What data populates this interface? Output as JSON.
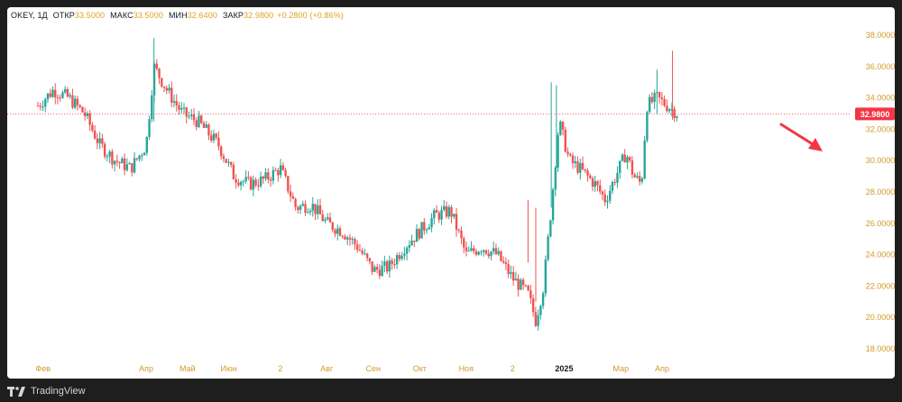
{
  "legend": {
    "symbol": "OKEY, 1Д",
    "open_label": "ОТКР",
    "open": "33.5000",
    "high_label": "МАКС",
    "high": "33.5000",
    "low_label": "МИН",
    "low": "32.6400",
    "close_label": "ЗАКР",
    "close": "32.9800",
    "change": "+0.2800 (+0.86%)"
  },
  "footer": {
    "brand": "TradingView"
  },
  "price_tag": "32.9800",
  "colors": {
    "up": "#26a69a",
    "down": "#ef5350",
    "axis_text": "#d39a2b",
    "price_line": "#f23645",
    "arrow": "#f23645"
  },
  "chart_data": {
    "type": "candlestick",
    "ylim": [
      17,
      39
    ],
    "yticks": [
      "18.0000",
      "20.0000",
      "22.0000",
      "24.0000",
      "26.0000",
      "28.0000",
      "30.0000",
      "32.0000",
      "34.0000",
      "36.0000",
      "38.0000"
    ],
    "ytick_values": [
      18,
      20,
      22,
      24,
      26,
      28,
      30,
      32,
      34,
      36,
      38
    ],
    "xticks": [
      "Фев",
      "Апр",
      "Май",
      "Июн",
      "2",
      "Авг",
      "Сен",
      "Окт",
      "Ноя",
      "2",
      "2025",
      "Мар",
      "Апр"
    ],
    "xtick_positions": [
      0.1,
      2.1,
      2.9,
      3.7,
      4.7,
      5.6,
      6.5,
      7.4,
      8.3,
      9.2,
      10.2,
      11.3,
      12.1
    ],
    "last_price": 32.98,
    "trend_points": [
      [
        0,
        33.5
      ],
      [
        0.3,
        34.5
      ],
      [
        0.6,
        34.0
      ],
      [
        0.9,
        33.0
      ],
      [
        1.2,
        31.0
      ],
      [
        1.5,
        30.0
      ],
      [
        1.8,
        29.5
      ],
      [
        2.1,
        31.0
      ],
      [
        2.25,
        36.0
      ],
      [
        2.5,
        34.5
      ],
      [
        2.8,
        33.0
      ],
      [
        3.1,
        32.5
      ],
      [
        3.5,
        31.0
      ],
      [
        3.8,
        29.0
      ],
      [
        4.1,
        28.5
      ],
      [
        4.4,
        28.8
      ],
      [
        4.7,
        29.5
      ],
      [
        5.0,
        27.0
      ],
      [
        5.3,
        27.2
      ],
      [
        5.6,
        26.0
      ],
      [
        5.9,
        25.5
      ],
      [
        6.2,
        24.5
      ],
      [
        6.5,
        23.0
      ],
      [
        6.8,
        23.2
      ],
      [
        7.1,
        24.5
      ],
      [
        7.4,
        25.5
      ],
      [
        7.7,
        26.5
      ],
      [
        8.0,
        26.8
      ],
      [
        8.3,
        24.0
      ],
      [
        8.6,
        24.5
      ],
      [
        8.9,
        24.0
      ],
      [
        9.2,
        22.5
      ],
      [
        9.5,
        21.5
      ],
      [
        9.65,
        19.8
      ],
      [
        9.8,
        22.0
      ],
      [
        9.95,
        27.0
      ],
      [
        10.1,
        32.5
      ],
      [
        10.3,
        30.0
      ],
      [
        10.5,
        29.5
      ],
      [
        10.8,
        28.5
      ],
      [
        11.0,
        27.5
      ],
      [
        11.2,
        29.0
      ],
      [
        11.4,
        30.5
      ],
      [
        11.55,
        29.0
      ],
      [
        11.7,
        28.5
      ],
      [
        11.8,
        33.5
      ],
      [
        12.0,
        34.0
      ],
      [
        12.2,
        33.5
      ],
      [
        12.4,
        33.0
      ]
    ]
  }
}
